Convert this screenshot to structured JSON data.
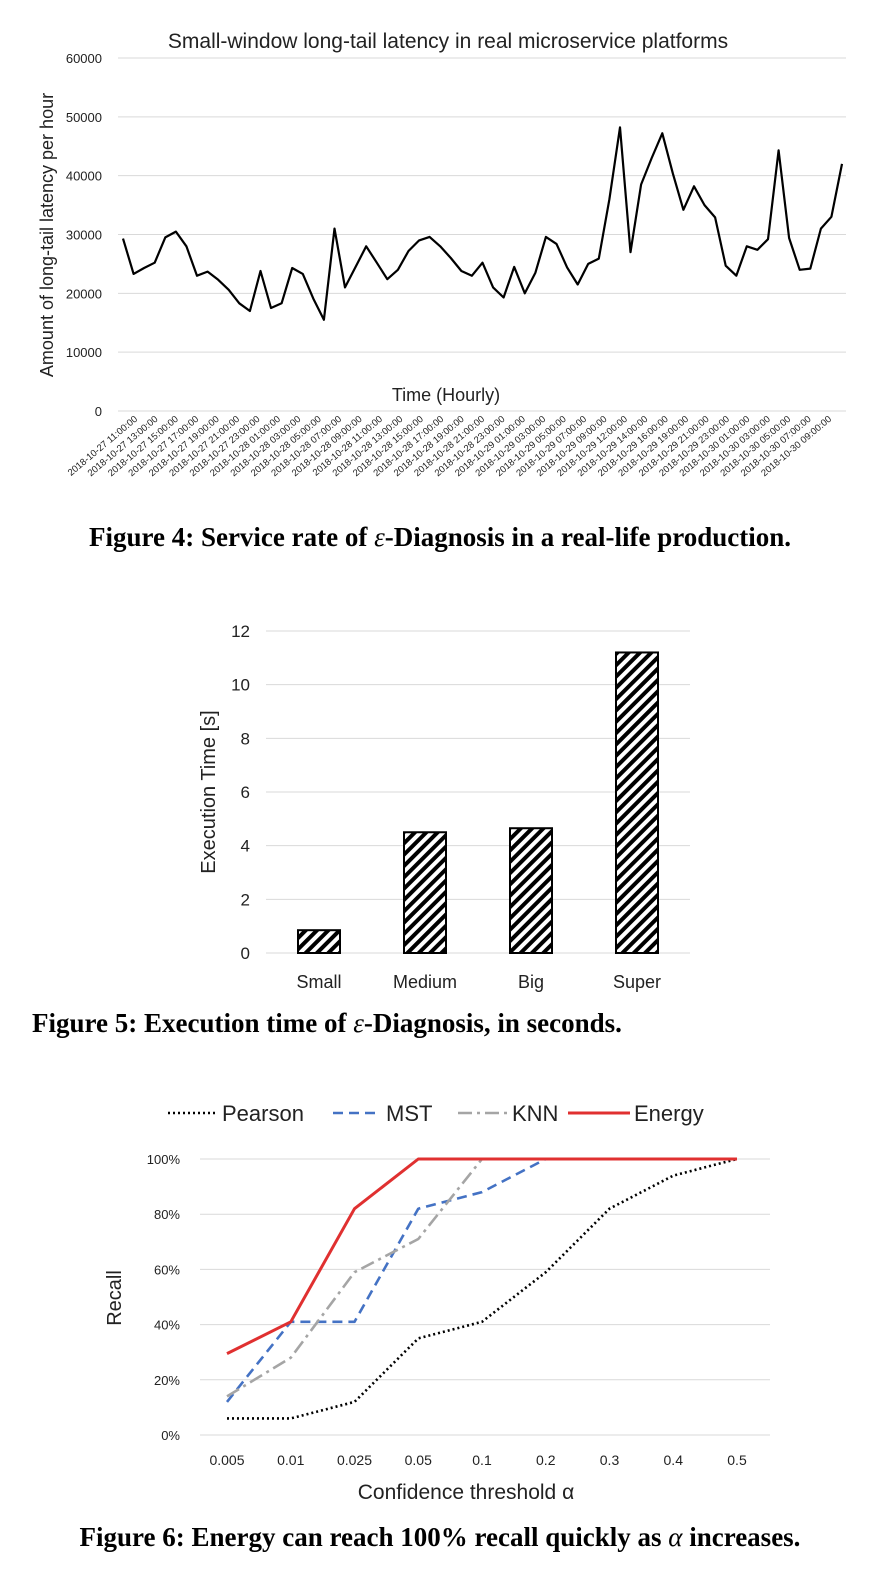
{
  "figures": [
    {
      "caption_prefix": "Figure 4: Service rate of ",
      "caption_epsilon": "ε",
      "caption_suffix": "-Diagnosis in a real-life production."
    },
    {
      "caption_prefix": "Figure 5: Execution time of ",
      "caption_epsilon": "ε",
      "caption_suffix": "-Diagnosis, in seconds."
    },
    {
      "caption_prefix": "Figure 6: Energy can reach 100% recall quickly as ",
      "caption_epsilon": "α",
      "caption_suffix": " increases."
    }
  ],
  "chart_data": [
    {
      "type": "line",
      "title": "Small-window long-tail latency in real microservice platforms",
      "xlabel": "Time (Hourly)",
      "ylabel": "Amount of long-tail latency per hour",
      "ylim": [
        0,
        60000
      ],
      "yticks": [
        "0",
        "10000",
        "20000",
        "30000",
        "40000",
        "50000",
        "60000"
      ],
      "grid": true,
      "color": "#000000",
      "x_ticklabels": [
        "2018-10-27 11:00:00",
        "2018-10-27 13:00:00",
        "2018-10-27 15:00:00",
        "2018-10-27 17:00:00",
        "2018-10-27 19:00:00",
        "2018-10-27 21:00:00",
        "2018-10-27 23:00:00",
        "2018-10-28 01:00:00",
        "2018-10-28 03:00:00",
        "2018-10-28 05:00:00",
        "2018-10-28 07:00:00",
        "2018-10-28 09:00:00",
        "2018-10-28 11:00:00",
        "2018-10-28 13:00:00",
        "2018-10-28 15:00:00",
        "2018-10-28 17:00:00",
        "2018-10-28 19:00:00",
        "2018-10-28 21:00:00",
        "2018-10-28 23:00:00",
        "2018-10-29 01:00:00",
        "2018-10-29 03:00:00",
        "2018-10-29 05:00:00",
        "2018-10-29 07:00:00",
        "2018-10-29 09:00:00",
        "2018-10-29 12:00:00",
        "2018-10-29 14:00:00",
        "2018-10-29 16:00:00",
        "2018-10-29 19:00:00",
        "2018-10-29 21:00:00",
        "2018-10-29 23:00:00",
        "2018-10-30 01:00:00",
        "2018-10-30 03:00:00",
        "2018-10-30 05:00:00",
        "2018-10-30 07:00:00",
        "2018-10-30 09:00:00"
      ],
      "values": [
        29300,
        23300,
        24300,
        25200,
        29500,
        30500,
        28000,
        23000,
        23700,
        22300,
        20600,
        18300,
        17000,
        23800,
        17500,
        18300,
        24300,
        23300,
        19100,
        15500,
        31000,
        21000,
        24500,
        28000,
        25200,
        22400,
        24000,
        27200,
        29000,
        29600,
        28000,
        26000,
        23800,
        23000,
        25200,
        21000,
        19300,
        24500,
        20000,
        23500,
        29600,
        28400,
        24400,
        21500,
        25000,
        25900,
        36000,
        48200,
        27000,
        38500,
        43000,
        47200,
        40400,
        34200,
        38200,
        35000,
        32900,
        24700,
        23000,
        28000,
        27400,
        29200,
        44300,
        29400,
        24000,
        24200,
        31000,
        33000,
        42000
      ]
    },
    {
      "type": "bar",
      "title": "",
      "xlabel": "",
      "ylabel": "Execution Time [s]",
      "ylim": [
        0,
        12
      ],
      "yticks": [
        "0",
        "2",
        "4",
        "6",
        "8",
        "10",
        "12"
      ],
      "grid": true,
      "pattern": "diagonal-hatch",
      "categories": [
        "Small",
        "Medium",
        "Big",
        "Super"
      ],
      "values": [
        0.85,
        4.5,
        4.65,
        11.2
      ]
    },
    {
      "type": "line",
      "title": "",
      "xlabel": "Confidence threshold α",
      "ylabel": "Recall",
      "ylim": [
        0,
        100
      ],
      "yticks": [
        "0%",
        "20%",
        "40%",
        "60%",
        "80%",
        "100%"
      ],
      "grid": true,
      "legend_position": "top",
      "categories": [
        "0.005",
        "0.01",
        "0.025",
        "0.05",
        "0.1",
        "0.2",
        "0.3",
        "0.4",
        "0.5"
      ],
      "series": [
        {
          "name": "Pearson",
          "color": "#000000",
          "style": "dotted",
          "values": [
            6,
            6,
            12,
            35,
            41,
            59,
            82,
            94,
            100
          ]
        },
        {
          "name": "MST",
          "color": "#4472c4",
          "style": "dashed",
          "values": [
            12,
            41,
            41,
            82,
            88,
            100,
            100,
            100,
            100
          ]
        },
        {
          "name": "KNN",
          "color": "#a5a5a5",
          "style": "dashdot",
          "values": [
            14,
            28,
            59,
            71,
            100,
            100,
            100,
            100,
            100
          ]
        },
        {
          "name": "Energy",
          "color": "#e03030",
          "style": "solid",
          "values": [
            29.5,
            41,
            82,
            100,
            100,
            100,
            100,
            100,
            100
          ]
        }
      ]
    }
  ]
}
